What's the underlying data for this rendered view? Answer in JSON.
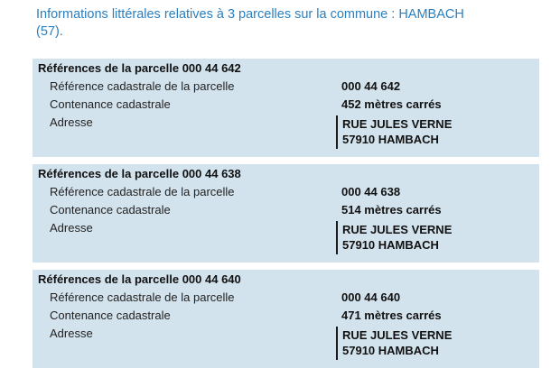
{
  "title": {
    "text": "Informations littérales relatives à 3 parcelles sur la commune : HAMBACH (57)."
  },
  "labels": {
    "reference": "Référence cadastrale de la parcelle",
    "contenance": "Contenance cadastrale",
    "adresse": "Adresse"
  },
  "colors": {
    "title_blue": "#2A7FBF",
    "section_background": "#D3E3ED",
    "text": "#1a1a1a"
  },
  "sections": [
    {
      "header": "Références de la parcelle 000 44 642",
      "reference": "000 44 642",
      "contenance": "452 mètres carrés",
      "adresse_line1": "RUE JULES VERNE",
      "adresse_line2": "57910 HAMBACH"
    },
    {
      "header": "Références de la parcelle 000 44 638",
      "reference": "000 44 638",
      "contenance": "514 mètres carrés",
      "adresse_line1": "RUE JULES VERNE",
      "adresse_line2": "57910 HAMBACH"
    },
    {
      "header": "Références de la parcelle 000 44 640",
      "reference": "000 44 640",
      "contenance": "471 mètres carrés",
      "adresse_line1": "RUE JULES VERNE",
      "adresse_line2": "57910 HAMBACH"
    }
  ]
}
